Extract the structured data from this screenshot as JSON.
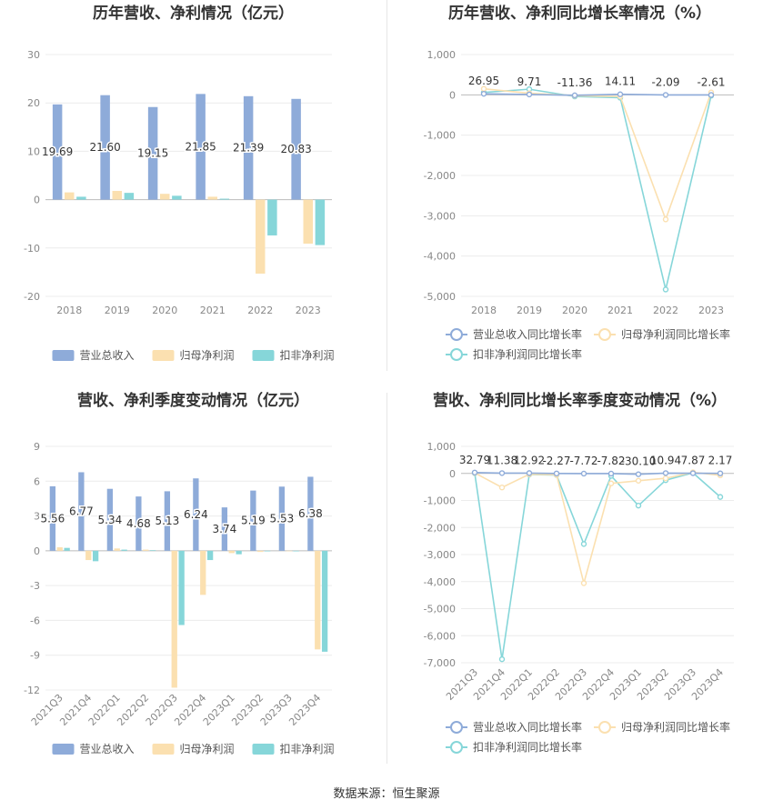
{
  "source_label": "数据来源：恒生聚源",
  "colors": {
    "revenue": "#8eabd9",
    "net_profit": "#fbe0b0",
    "deducted": "#86d6d9",
    "axis_text": "#888888",
    "grid": "#ececec",
    "title": "#333333"
  },
  "chart_data": [
    {
      "id": "annual-values",
      "type": "bar",
      "title": "历年营收、净利情况（亿元）",
      "categories": [
        "2018",
        "2019",
        "2020",
        "2021",
        "2022",
        "2023"
      ],
      "ylim": [
        -20,
        30
      ],
      "yticks": [
        30,
        20,
        10,
        0,
        -10,
        -20
      ],
      "grid": true,
      "legend": "bottom",
      "series": [
        {
          "name": "营业总收入",
          "color": "#8eabd9",
          "values": [
            19.69,
            21.6,
            19.15,
            21.85,
            21.39,
            20.83
          ],
          "labels": [
            "19.69",
            "21.60",
            "19.15",
            "21.85",
            "21.39",
            "20.83"
          ]
        },
        {
          "name": "归母净利润",
          "color": "#fbe0b0",
          "values": [
            1.5,
            1.8,
            1.2,
            0.6,
            -15.3,
            -9.1
          ]
        },
        {
          "name": "扣非净利润",
          "color": "#86d6d9",
          "values": [
            0.6,
            1.4,
            0.8,
            0.2,
            -7.4,
            -9.4
          ]
        }
      ]
    },
    {
      "id": "annual-growth",
      "type": "line",
      "title": "历年营收、净利同比增长率情况（%）",
      "categories": [
        "2018",
        "2019",
        "2020",
        "2021",
        "2022",
        "2023"
      ],
      "ylim": [
        -5000,
        1000
      ],
      "yticks": [
        1000,
        0,
        -1000,
        -2000,
        -3000,
        -4000,
        -5000
      ],
      "ytick_labels": [
        "1,000",
        "0",
        "-1,000",
        "-2,000",
        "-3,000",
        "-4,000",
        "-5,000"
      ],
      "grid": true,
      "legend": "bottom",
      "series": [
        {
          "name": "营业总收入同比增长率",
          "color": "#8eabd9",
          "values": [
            26.95,
            9.71,
            -11.36,
            14.11,
            -2.09,
            -2.61
          ],
          "labels": [
            "26.95",
            "9.71",
            "-11.36",
            "14.11",
            "-2.09",
            "-2.61"
          ]
        },
        {
          "name": "归母净利润同比增长率",
          "color": "#fbe0b0",
          "values": [
            150,
            40,
            -20,
            -40,
            -3090,
            60
          ]
        },
        {
          "name": "扣非净利润同比增长率",
          "color": "#86d6d9",
          "values": [
            60,
            140,
            -40,
            -70,
            -4830,
            -20
          ]
        }
      ]
    },
    {
      "id": "quarterly-values",
      "type": "bar",
      "title": "营收、净利季度变动情况（亿元）",
      "categories": [
        "2021Q3",
        "2021Q4",
        "2022Q1",
        "2022Q2",
        "2022Q3",
        "2022Q4",
        "2023Q1",
        "2023Q2",
        "2023Q3",
        "2023Q4"
      ],
      "ylim": [
        -12,
        9
      ],
      "yticks": [
        9,
        6,
        3,
        0,
        -3,
        -6,
        -9,
        -12
      ],
      "grid": true,
      "legend": "bottom",
      "series": [
        {
          "name": "营业总收入",
          "color": "#8eabd9",
          "values": [
            5.56,
            6.77,
            5.34,
            4.68,
            5.13,
            6.24,
            3.74,
            5.19,
            5.53,
            6.38
          ],
          "labels": [
            "5.56",
            "6.77",
            "5.34",
            "4.68",
            "5.13",
            "6.24",
            "3.74",
            "5.19",
            "5.53",
            "6.38"
          ]
        },
        {
          "name": "归母净利润",
          "color": "#fbe0b0",
          "values": [
            0.3,
            -0.8,
            0.2,
            0.1,
            -11.8,
            -3.8,
            -0.2,
            -0.1,
            0.0,
            -8.5
          ]
        },
        {
          "name": "扣非净利润",
          "color": "#86d6d9",
          "values": [
            0.25,
            -0.9,
            0.1,
            0.05,
            -6.4,
            -0.8,
            -0.3,
            -0.05,
            -0.05,
            -8.7
          ]
        }
      ]
    },
    {
      "id": "quarterly-growth",
      "type": "line",
      "title": "营收、净利同比增长率季度变动情况（%）",
      "categories": [
        "2021Q3",
        "2021Q4",
        "2022Q1",
        "2022Q2",
        "2022Q3",
        "2022Q4",
        "2023Q1",
        "2023Q2",
        "2023Q3",
        "2023Q4"
      ],
      "ylim": [
        -7000,
        1000
      ],
      "yticks": [
        1000,
        0,
        -1000,
        -2000,
        -3000,
        -4000,
        -5000,
        -6000,
        -7000
      ],
      "ytick_labels": [
        "1,000",
        "0",
        "-1,000",
        "-2,000",
        "-3,000",
        "-4,000",
        "-5,000",
        "-6,000",
        "-7,000"
      ],
      "grid": true,
      "legend": "bottom",
      "series": [
        {
          "name": "营业总收入同比增长率",
          "color": "#8eabd9",
          "values": [
            32.79,
            11.38,
            12.92,
            -2.27,
            -7.72,
            -7.82,
            -30.1,
            10.94,
            7.87,
            2.17
          ],
          "labels": [
            "32.79",
            "11.38",
            "12.92",
            "-2.27",
            "-7.72",
            "-7.82",
            "-30.10",
            "10.94",
            "7.87",
            "2.17"
          ]
        },
        {
          "name": "归母净利润同比增长率",
          "color": "#fbe0b0",
          "values": [
            20,
            -520,
            -30,
            -50,
            -4060,
            -370,
            -270,
            -180,
            40,
            -70
          ]
        },
        {
          "name": "扣非净利润同比增长率",
          "color": "#86d6d9",
          "values": [
            10,
            -6870,
            -40,
            -60,
            -2610,
            -90,
            -1190,
            -250,
            20,
            -870
          ]
        }
      ]
    }
  ]
}
